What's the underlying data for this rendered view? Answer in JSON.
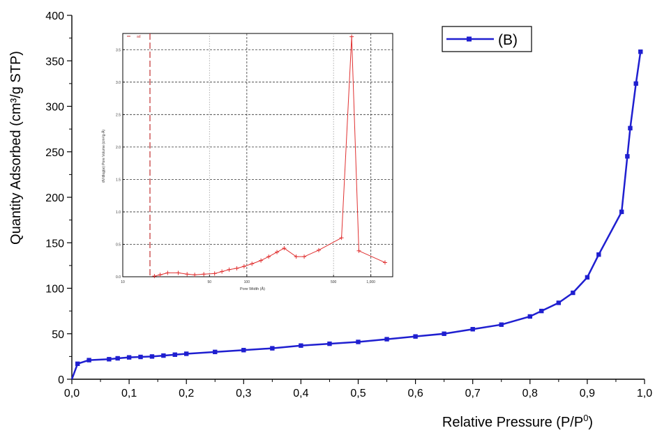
{
  "chart_data": [
    {
      "type": "line",
      "xlabel": "Relative Pressure (P/P",
      "xlabel_sup": "0",
      "xlabel_close": ")",
      "ylabel": "Quantity Adsorbed (cm³/g STP)",
      "xlim": [
        0.0,
        1.0
      ],
      "ylim": [
        0,
        400
      ],
      "xticks": [
        0.0,
        0.1,
        0.2,
        0.3,
        0.4,
        0.5,
        0.6,
        0.7,
        0.8,
        0.9,
        1.0
      ],
      "xtick_labels": [
        "0,0",
        "0,1",
        "0,2",
        "0,3",
        "0,4",
        "0,5",
        "0,6",
        "0,7",
        "0,8",
        "0,9",
        "1,0"
      ],
      "yticks": [
        0,
        50,
        100,
        150,
        200,
        250,
        300,
        350,
        400
      ],
      "ytick_labels": [
        "0",
        "50",
        "100",
        "150",
        "200",
        "250",
        "300",
        "350",
        "400"
      ],
      "legend": "top-right",
      "grid": false,
      "series": [
        {
          "name": "(B)",
          "color": "#1f1fd0",
          "marker": "square",
          "x": [
            0.0,
            0.01,
            0.03,
            0.065,
            0.08,
            0.1,
            0.12,
            0.14,
            0.16,
            0.18,
            0.2,
            0.25,
            0.3,
            0.35,
            0.4,
            0.45,
            0.5,
            0.55,
            0.6,
            0.65,
            0.7,
            0.75,
            0.8,
            0.82,
            0.85,
            0.875,
            0.9,
            0.92,
            0.96,
            0.97,
            0.975,
            0.985,
            0.993
          ],
          "y": [
            0,
            17,
            21,
            22,
            23,
            24,
            24.5,
            25,
            26,
            27,
            28,
            30,
            32,
            34,
            37,
            39,
            41,
            44,
            47,
            50,
            55,
            60,
            69,
            75,
            84,
            95,
            112,
            137,
            184,
            245,
            276,
            325,
            360
          ]
        }
      ]
    },
    {
      "type": "line",
      "xlabel": "Pore Width (Å)",
      "ylabel": "dV/dlog(w) Pore Volume (cm³/g·Å)",
      "xscale": "log",
      "xlim": [
        10,
        1500
      ],
      "ylim": [
        0,
        3.75
      ],
      "xticks": [
        10,
        50,
        100,
        500,
        1000
      ],
      "xtick_labels": [
        "10",
        "50",
        "100",
        "500",
        "1,000"
      ],
      "yticks": [
        0.0,
        0.5,
        1.0,
        1.5,
        2.0,
        2.5,
        3.0,
        3.5
      ],
      "ytick_labels": [
        "0.0",
        "0.5",
        "1.0",
        "1.5",
        "2.0",
        "2.5",
        "3.0",
        "3.5"
      ],
      "grid": true,
      "legend_text": "ad",
      "series": [
        {
          "name": "",
          "color": "#e03030",
          "marker": "plus",
          "x": [
            18,
            20,
            23,
            28,
            33,
            38,
            45,
            55,
            63,
            72,
            83,
            95,
            110,
            130,
            150,
            175,
            200,
            250,
            290,
            380,
            580,
            700,
            800,
            1300
          ],
          "y": [
            0.01,
            0.03,
            0.06,
            0.06,
            0.04,
            0.03,
            0.04,
            0.05,
            0.08,
            0.11,
            0.13,
            0.16,
            0.2,
            0.25,
            0.31,
            0.38,
            0.44,
            0.31,
            0.31,
            0.41,
            0.6,
            3.7,
            0.4,
            0.22
          ]
        }
      ]
    }
  ],
  "colors": {
    "main_series": "#1f1fd0",
    "inset_series": "#e03030",
    "inset_marker_line": "#c03030",
    "axis": "#000000",
    "grid": "#555555"
  }
}
